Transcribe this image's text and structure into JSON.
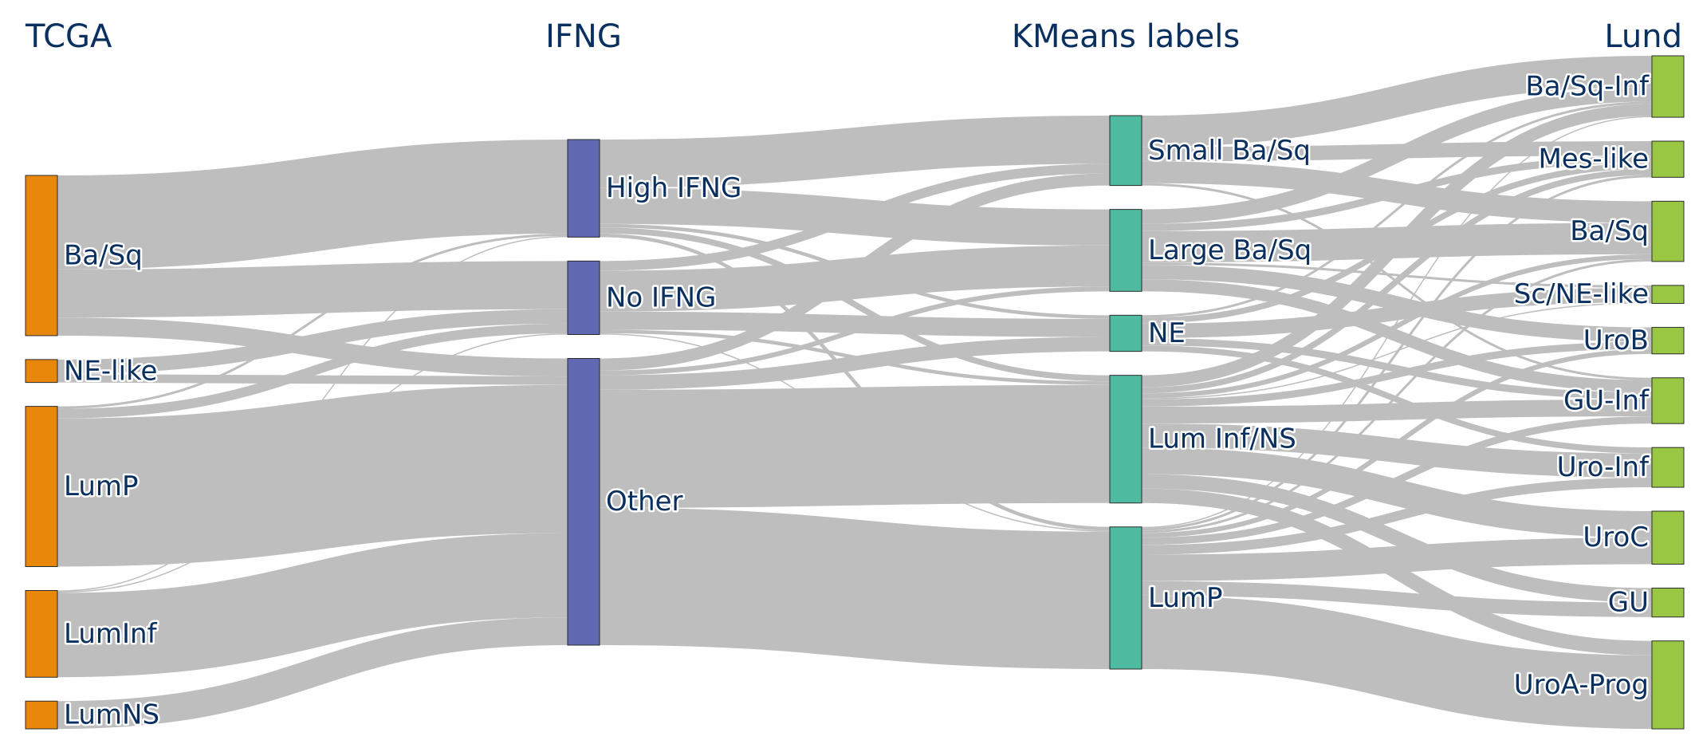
{
  "columns": [
    {
      "key": "tcga",
      "title": "TCGA",
      "color": "#e8870a"
    },
    {
      "key": "ifng",
      "title": "IFNG",
      "color": "#5f68b1"
    },
    {
      "key": "kmeans",
      "title": "KMeans labels",
      "color": "#4fbba0"
    },
    {
      "key": "lund",
      "title": "Lund",
      "color": "#99c744"
    }
  ],
  "nodes": [
    {
      "id": "t_basq",
      "col": 0,
      "label": "Ba/Sq"
    },
    {
      "id": "t_ne",
      "col": 0,
      "label": "NE-like"
    },
    {
      "id": "t_lump",
      "col": 0,
      "label": "LumP"
    },
    {
      "id": "t_luminf",
      "col": 0,
      "label": "LumInf"
    },
    {
      "id": "t_lumns",
      "col": 0,
      "label": "LumNS"
    },
    {
      "id": "i_high",
      "col": 1,
      "label": "High IFNG"
    },
    {
      "id": "i_no",
      "col": 1,
      "label": "No IFNG"
    },
    {
      "id": "i_other",
      "col": 1,
      "label": "Other"
    },
    {
      "id": "k_small",
      "col": 2,
      "label": "Small Ba/Sq"
    },
    {
      "id": "k_large",
      "col": 2,
      "label": "Large Ba/Sq"
    },
    {
      "id": "k_ne",
      "col": 2,
      "label": "NE"
    },
    {
      "id": "k_luminf",
      "col": 2,
      "label": "Lum Inf/NS"
    },
    {
      "id": "k_lump",
      "col": 2,
      "label": "LumP"
    },
    {
      "id": "l_basqinf",
      "col": 3,
      "label": "Ba/Sq-Inf"
    },
    {
      "id": "l_mes",
      "col": 3,
      "label": "Mes-like"
    },
    {
      "id": "l_basq",
      "col": 3,
      "label": "Ba/Sq"
    },
    {
      "id": "l_scne",
      "col": 3,
      "label": "Sc/NE-like"
    },
    {
      "id": "l_urob",
      "col": 3,
      "label": "UroB"
    },
    {
      "id": "l_guinf",
      "col": 3,
      "label": "GU-Inf"
    },
    {
      "id": "l_uroinf",
      "col": 3,
      "label": "Uro-Inf"
    },
    {
      "id": "l_uroc",
      "col": 3,
      "label": "UroC"
    },
    {
      "id": "l_gu",
      "col": 3,
      "label": "GU"
    },
    {
      "id": "l_uroa",
      "col": 3,
      "label": "UroA-Prog"
    }
  ],
  "links": [
    {
      "source": "t_basq",
      "target": "i_high",
      "value": 78
    },
    {
      "source": "t_basq",
      "target": "i_no",
      "value": 40
    },
    {
      "source": "t_basq",
      "target": "i_other",
      "value": 15
    },
    {
      "source": "t_ne",
      "target": "i_no",
      "value": 12
    },
    {
      "source": "t_ne",
      "target": "i_other",
      "value": 7
    },
    {
      "source": "t_lump",
      "target": "i_high",
      "value": 2
    },
    {
      "source": "t_lump",
      "target": "i_no",
      "value": 8
    },
    {
      "source": "t_lump",
      "target": "i_other",
      "value": 123
    },
    {
      "source": "t_luminf",
      "target": "i_high",
      "value": 1
    },
    {
      "source": "t_luminf",
      "target": "i_no",
      "value": 1
    },
    {
      "source": "t_luminf",
      "target": "i_other",
      "value": 70
    },
    {
      "source": "t_lumns",
      "target": "i_other",
      "value": 23
    },
    {
      "source": "i_high",
      "target": "k_small",
      "value": 40
    },
    {
      "source": "i_high",
      "target": "k_large",
      "value": 30
    },
    {
      "source": "i_high",
      "target": "k_ne",
      "value": 3
    },
    {
      "source": "i_high",
      "target": "k_luminf",
      "value": 5
    },
    {
      "source": "i_high",
      "target": "k_lump",
      "value": 3
    },
    {
      "source": "i_no",
      "target": "k_small",
      "value": 8
    },
    {
      "source": "i_no",
      "target": "k_large",
      "value": 34
    },
    {
      "source": "i_no",
      "target": "k_ne",
      "value": 15
    },
    {
      "source": "i_no",
      "target": "k_luminf",
      "value": 3
    },
    {
      "source": "i_no",
      "target": "k_lump",
      "value": 1
    },
    {
      "source": "i_other",
      "target": "k_small",
      "value": 10
    },
    {
      "source": "i_other",
      "target": "k_large",
      "value": 4
    },
    {
      "source": "i_other",
      "target": "k_ne",
      "value": 12
    },
    {
      "source": "i_other",
      "target": "k_luminf",
      "value": 98
    },
    {
      "source": "i_other",
      "target": "k_lump",
      "value": 114
    },
    {
      "source": "k_small",
      "target": "l_basqinf",
      "value": 26
    },
    {
      "source": "k_small",
      "target": "l_mes",
      "value": 12
    },
    {
      "source": "k_small",
      "target": "l_basq",
      "value": 18
    },
    {
      "source": "k_small",
      "target": "l_guinf",
      "value": 2
    },
    {
      "source": "k_large",
      "target": "l_basqinf",
      "value": 12
    },
    {
      "source": "k_large",
      "target": "l_mes",
      "value": 6
    },
    {
      "source": "k_large",
      "target": "l_basq",
      "value": 26
    },
    {
      "source": "k_large",
      "target": "l_scne",
      "value": 2
    },
    {
      "source": "k_large",
      "target": "l_urob",
      "value": 12
    },
    {
      "source": "k_large",
      "target": "l_guinf",
      "value": 10
    },
    {
      "source": "k_ne",
      "target": "l_basqinf",
      "value": 2
    },
    {
      "source": "k_ne",
      "target": "l_mes",
      "value": 5
    },
    {
      "source": "k_ne",
      "target": "l_scne",
      "value": 12
    },
    {
      "source": "k_ne",
      "target": "l_guinf",
      "value": 6
    },
    {
      "source": "k_ne",
      "target": "l_uroinf",
      "value": 5
    },
    {
      "source": "k_luminf",
      "target": "l_basqinf",
      "value": 10
    },
    {
      "source": "k_luminf",
      "target": "l_mes",
      "value": 5
    },
    {
      "source": "k_luminf",
      "target": "l_basq",
      "value": 4
    },
    {
      "source": "k_luminf",
      "target": "l_scne",
      "value": 1
    },
    {
      "source": "k_luminf",
      "target": "l_urob",
      "value": 6
    },
    {
      "source": "k_luminf",
      "target": "l_guinf",
      "value": 14
    },
    {
      "source": "k_luminf",
      "target": "l_uroinf",
      "value": 20
    },
    {
      "source": "k_luminf",
      "target": "l_uroc",
      "value": 22
    },
    {
      "source": "k_luminf",
      "target": "l_gu",
      "value": 12
    },
    {
      "source": "k_luminf",
      "target": "l_uroa",
      "value": 12
    },
    {
      "source": "k_lump",
      "target": "l_basqinf",
      "value": 1
    },
    {
      "source": "k_lump",
      "target": "l_mes",
      "value": 2
    },
    {
      "source": "k_lump",
      "target": "l_basq",
      "value": 2
    },
    {
      "source": "k_lump",
      "target": "l_urob",
      "value": 4
    },
    {
      "source": "k_lump",
      "target": "l_guinf",
      "value": 6
    },
    {
      "source": "k_lump",
      "target": "l_uroinf",
      "value": 8
    },
    {
      "source": "k_lump",
      "target": "l_uroc",
      "value": 22
    },
    {
      "source": "k_lump",
      "target": "l_gu",
      "value": 12
    },
    {
      "source": "k_lump",
      "target": "l_uroa",
      "value": 61
    }
  ]
}
